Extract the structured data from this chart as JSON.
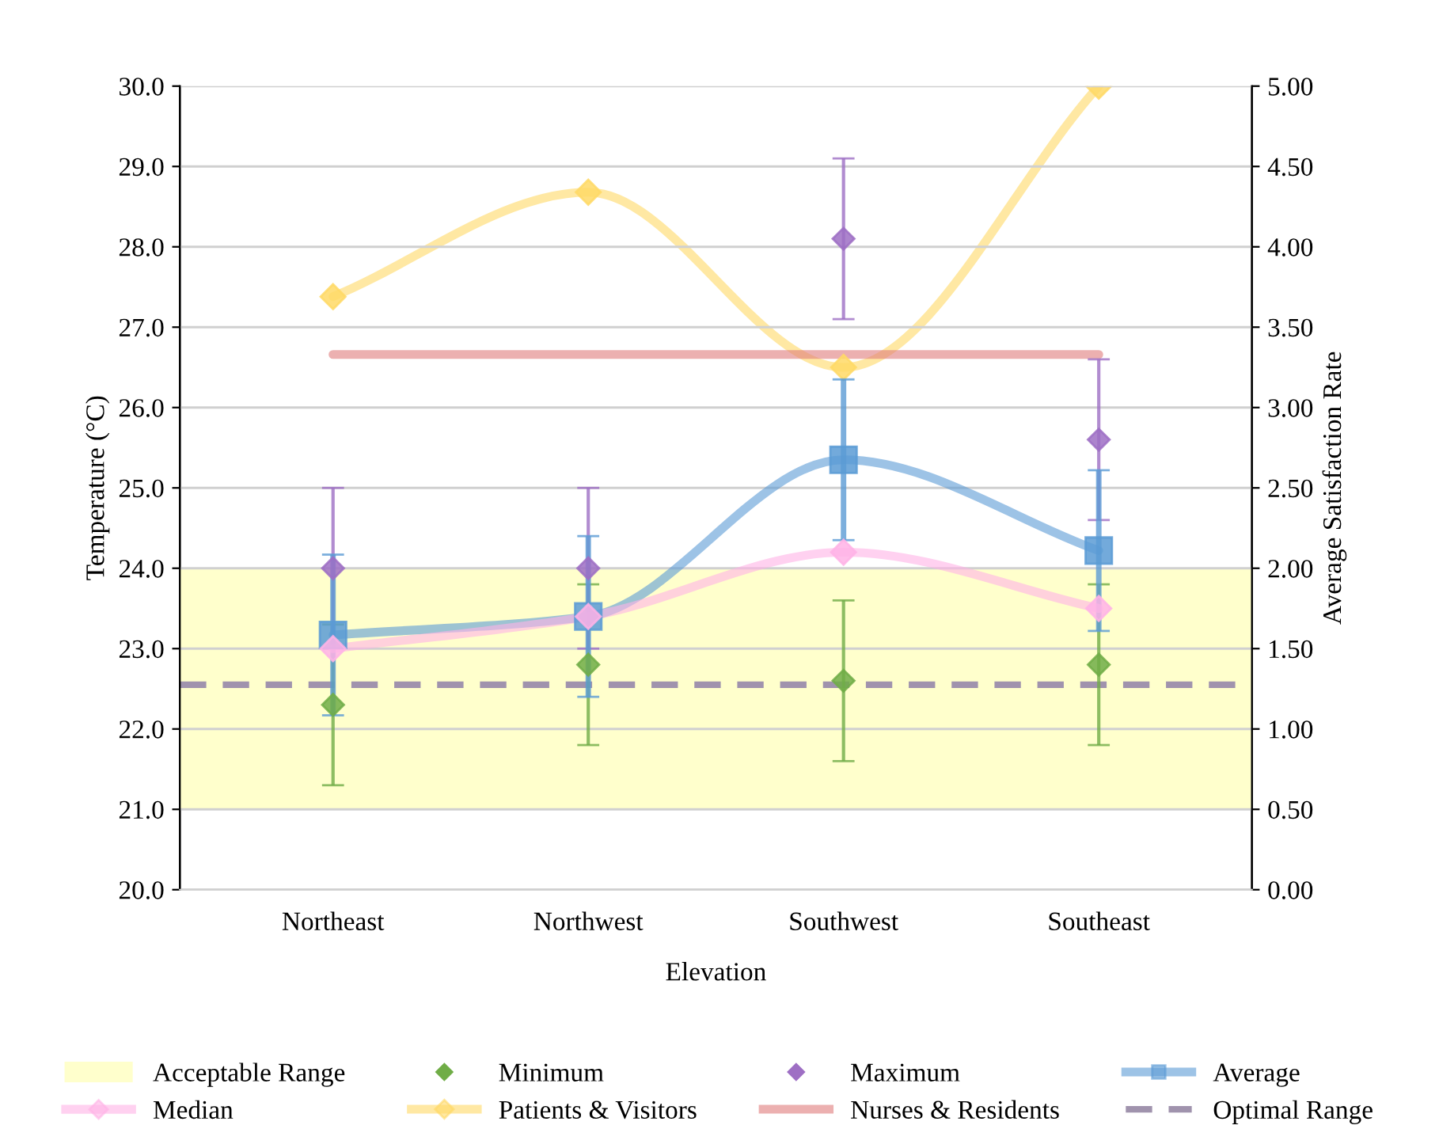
{
  "chart_data": {
    "type": "line",
    "xlabel": "Elevation",
    "ylabel": "Temperature (°C)",
    "y2label": "Average Satisfaction Rate",
    "categories": [
      "Northeast",
      "Northwest",
      "Southwest",
      "Southeast"
    ],
    "series": [
      {
        "name": "Minimum",
        "type": "scatter",
        "color": "#70ad47",
        "marker": "diamond",
        "values": [
          22.3,
          22.8,
          22.6,
          22.8
        ],
        "errors": [
          1.0,
          1.0,
          1.0,
          1.0
        ]
      },
      {
        "name": "Maximum",
        "type": "scatter",
        "color": "#9e6fc4",
        "marker": "diamond",
        "values": [
          24.0,
          24.0,
          28.1,
          25.6
        ],
        "errors": [
          1.0,
          1.0,
          1.0,
          1.0
        ]
      },
      {
        "name": "Average",
        "color": "#5b9bd5",
        "marker": "square",
        "values": [
          23.17,
          23.4,
          25.35,
          24.22
        ],
        "errors": [
          1.0,
          1.0,
          1.0,
          1.0
        ]
      },
      {
        "name": "Median",
        "color": "#ffb3e6",
        "marker": "diamond",
        "values": [
          23.0,
          23.4,
          24.2,
          23.5
        ]
      },
      {
        "name": "Patients & Visitors",
        "color": "#ffd966",
        "marker": "diamond",
        "axis": "y2",
        "values": [
          3.69,
          4.34,
          3.25,
          5.0
        ]
      },
      {
        "name": "Nurses & Residents",
        "color": "#e07b7b",
        "marker": "none",
        "axis": "y2",
        "values": [
          3.33,
          3.33,
          3.33,
          3.33
        ]
      }
    ],
    "bands": [
      {
        "axis": "y",
        "from": 21.0,
        "to": 24.0,
        "label": "Acceptable Range",
        "color": "#ffffcc"
      }
    ],
    "ref_lines": [
      {
        "axis": "y",
        "value": 22.55,
        "label": "Optimal Range",
        "color": "#a093ad",
        "line_style": "dashed"
      }
    ],
    "ylim": [
      20,
      30
    ],
    "yticks": [
      {
        "value": 20,
        "label": "20.0"
      },
      {
        "value": 21,
        "label": "21.0"
      },
      {
        "value": 22,
        "label": "22.0"
      },
      {
        "value": 23,
        "label": "23.0"
      },
      {
        "value": 24,
        "label": "24.0"
      },
      {
        "value": 25,
        "label": "25.0"
      },
      {
        "value": 26,
        "label": "26.0"
      },
      {
        "value": 27,
        "label": "27.0"
      },
      {
        "value": 28,
        "label": "28.0"
      },
      {
        "value": 29,
        "label": "29.0"
      },
      {
        "value": 30,
        "label": "30.0"
      }
    ],
    "y2lim": [
      0,
      5
    ],
    "y2ticks": [
      {
        "value": 0,
        "label": "0.00"
      },
      {
        "value": 0.5,
        "label": "0.50"
      },
      {
        "value": 1,
        "label": "1.00"
      },
      {
        "value": 1.5,
        "label": "1.50"
      },
      {
        "value": 2,
        "label": "2.00"
      },
      {
        "value": 2.5,
        "label": "2.50"
      },
      {
        "value": 3,
        "label": "3.00"
      },
      {
        "value": 3.5,
        "label": "3.50"
      },
      {
        "value": 4,
        "label": "4.00"
      },
      {
        "value": 4.5,
        "label": "4.50"
      },
      {
        "value": 5,
        "label": "5.00"
      }
    ],
    "grid": "y",
    "legend": "bottom"
  }
}
